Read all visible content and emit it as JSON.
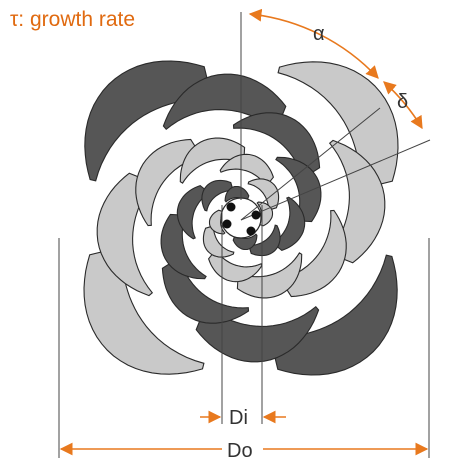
{
  "diagram": {
    "title": "τ: growth rate",
    "labels": {
      "alpha": "α",
      "delta": "δ",
      "inner_diameter": "Di",
      "outer_diameter": "Do"
    },
    "colors": {
      "title": "#e06a10",
      "arrow": "#e8791e",
      "dark_arm": "#565656",
      "light_arm": "#c9c9c9",
      "outline": "#2a2a2a",
      "line": "#444444"
    },
    "arm_count": 4,
    "ring_count": 6
  }
}
